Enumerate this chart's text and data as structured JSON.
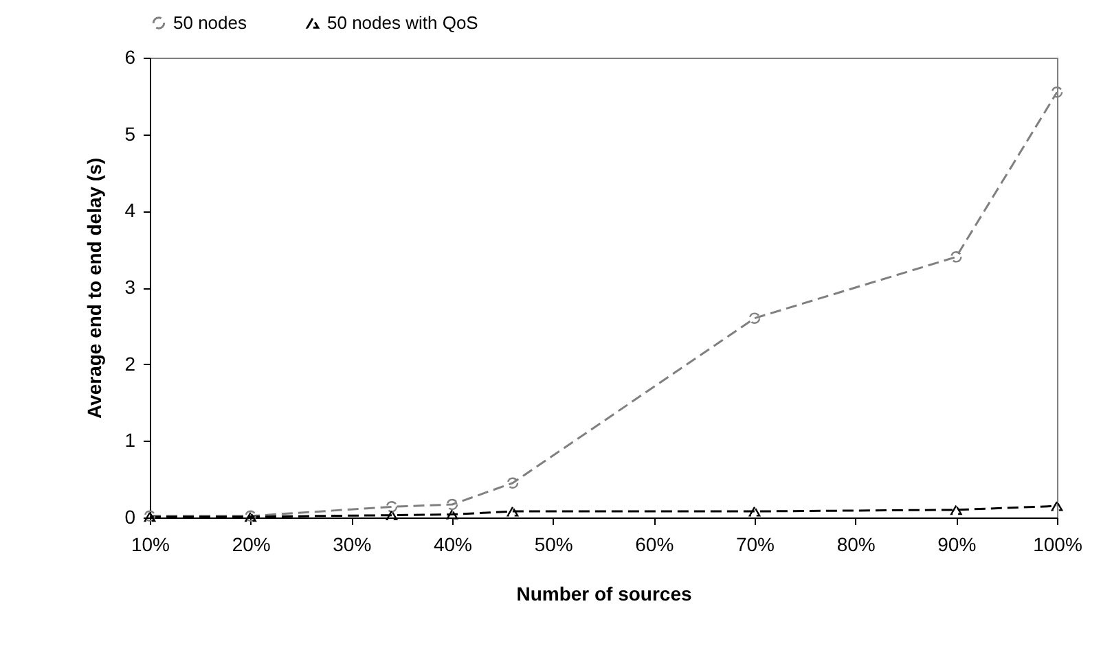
{
  "chart_data": {
    "type": "line",
    "xlabel": "Number of sources",
    "ylabel": "Average end to end delay (s)",
    "x": [
      10,
      20,
      34,
      40,
      46,
      70,
      90,
      100
    ],
    "series": [
      {
        "name": "50 nodes",
        "color": "#808080",
        "marker": "circle",
        "line_style": "dashed",
        "values": [
          0.02,
          0.02,
          0.14,
          0.17,
          0.45,
          2.6,
          3.4,
          5.55
        ]
      },
      {
        "name": "50 nodes with QoS",
        "color": "#000000",
        "marker": "triangle",
        "line_style": "dashed",
        "values": [
          0.01,
          0.01,
          0.03,
          0.04,
          0.08,
          0.08,
          0.1,
          0.15
        ]
      }
    ],
    "xlim": [
      10,
      100
    ],
    "xticks": [
      {
        "value": 10,
        "label": "10%"
      },
      {
        "value": 20,
        "label": "20%"
      },
      {
        "value": 30,
        "label": "30%"
      },
      {
        "value": 40,
        "label": "40%"
      },
      {
        "value": 50,
        "label": "50%"
      },
      {
        "value": 60,
        "label": "60%"
      },
      {
        "value": 70,
        "label": "70%"
      },
      {
        "value": 80,
        "label": "80%"
      },
      {
        "value": 90,
        "label": "90%"
      },
      {
        "value": 100,
        "label": "100%"
      }
    ],
    "ylim": [
      0,
      6
    ],
    "yticks": [
      0,
      1,
      2,
      3,
      4,
      5,
      6
    ],
    "grid": false,
    "legend": "top"
  }
}
